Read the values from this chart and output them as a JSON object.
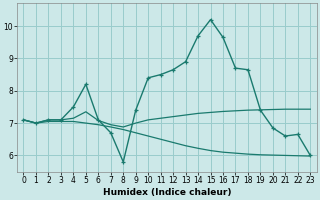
{
  "xlabel": "Humidex (Indice chaleur)",
  "xlim": [
    -0.5,
    23.5
  ],
  "ylim": [
    5.5,
    10.7
  ],
  "yticks": [
    6,
    7,
    8,
    9,
    10
  ],
  "xticks": [
    0,
    1,
    2,
    3,
    4,
    5,
    6,
    7,
    8,
    9,
    10,
    11,
    12,
    13,
    14,
    15,
    16,
    17,
    18,
    19,
    20,
    21,
    22,
    23
  ],
  "background_color": "#cce8e8",
  "grid_color": "#99cccc",
  "line_color": "#1a7a6e",
  "lines": [
    {
      "x": [
        0,
        1,
        2,
        3,
        4,
        5,
        6,
        7,
        8,
        9,
        10,
        11,
        12,
        13,
        14,
        15,
        16,
        17,
        18,
        19,
        20,
        21,
        22,
        23
      ],
      "y": [
        7.1,
        7.0,
        7.1,
        7.1,
        7.5,
        8.2,
        7.1,
        6.7,
        5.8,
        7.4,
        8.4,
        8.5,
        8.65,
        8.9,
        9.7,
        10.2,
        9.65,
        8.7,
        8.65,
        7.4,
        6.85,
        6.6,
        6.65,
        6.0
      ],
      "marker": "+",
      "lw": 1.0
    },
    {
      "x": [
        0,
        1,
        2,
        3,
        4,
        5,
        6,
        7,
        8,
        9,
        10,
        11,
        12,
        13,
        14,
        15,
        16,
        17,
        18,
        19,
        20,
        21,
        22,
        23
      ],
      "y": [
        7.1,
        7.0,
        7.1,
        7.1,
        7.15,
        7.35,
        7.08,
        6.95,
        6.88,
        7.0,
        7.1,
        7.15,
        7.2,
        7.25,
        7.3,
        7.33,
        7.36,
        7.38,
        7.4,
        7.41,
        7.42,
        7.43,
        7.43,
        7.43
      ],
      "marker": null,
      "lw": 0.9
    },
    {
      "x": [
        0,
        1,
        2,
        3,
        4,
        5,
        6,
        7,
        8,
        9,
        10,
        11,
        12,
        13,
        14,
        15,
        16,
        17,
        18,
        19,
        20,
        21,
        22,
        23
      ],
      "y": [
        7.1,
        7.0,
        7.05,
        7.05,
        7.05,
        7.0,
        6.95,
        6.88,
        6.8,
        6.7,
        6.6,
        6.5,
        6.4,
        6.3,
        6.22,
        6.15,
        6.1,
        6.07,
        6.04,
        6.02,
        6.01,
        6.0,
        5.99,
        5.98
      ],
      "marker": null,
      "lw": 0.9
    }
  ],
  "tick_fontsize": 5.5,
  "xlabel_fontsize": 6.5,
  "xlabel_fontweight": "bold"
}
